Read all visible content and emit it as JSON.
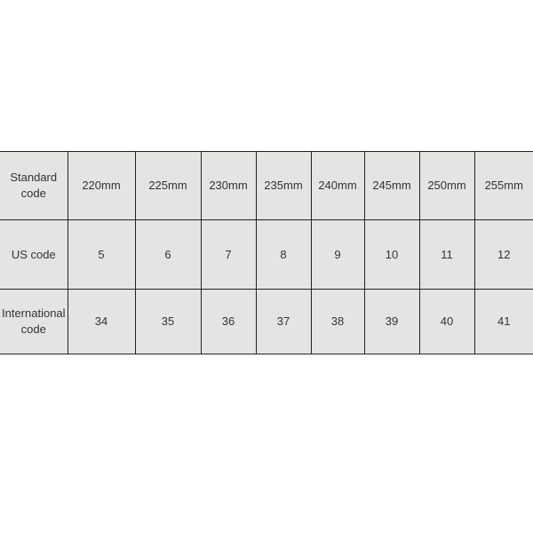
{
  "rows": [
    {
      "label": "Standard code",
      "values": [
        "220mm",
        "225mm",
        "230mm",
        "235mm",
        "240mm",
        "245mm",
        "250mm",
        "255mm"
      ]
    },
    {
      "label": "US code",
      "values": [
        "5",
        "6",
        "7",
        "8",
        "9",
        "10",
        "11",
        "12"
      ]
    },
    {
      "label": "International code",
      "values": [
        "34",
        "35",
        "36",
        "37",
        "38",
        "39",
        "40",
        "41"
      ]
    }
  ]
}
